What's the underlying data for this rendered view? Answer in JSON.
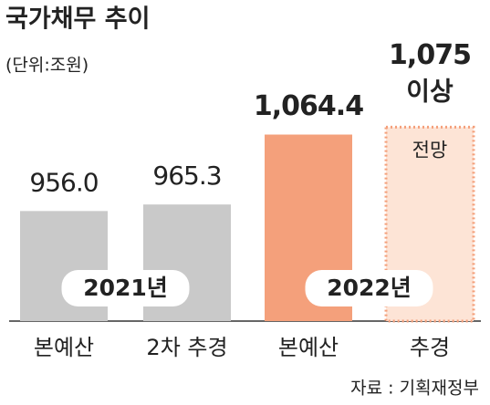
{
  "chart_data": {
    "type": "bar",
    "title": "국가채무 추이",
    "subtitle": "(단위:조원)",
    "categories": [
      "본예산",
      "2차 추경",
      "본예산",
      "추경"
    ],
    "values": [
      956.0,
      965.3,
      1064.4,
      1075
    ],
    "value_labels": [
      "956.0",
      "965.3",
      "1,064.4",
      "1,075"
    ],
    "colors": [
      "#c9c9c9",
      "#c9c9c9",
      "#f4a07b",
      "#fde4d6"
    ],
    "bar_styles": [
      "solid",
      "solid",
      "solid",
      "dotted"
    ],
    "groups": [
      "2021년",
      "2022년"
    ],
    "annotations": [
      "이상",
      "전망"
    ],
    "source": "자료 : 기획재정부",
    "ylim": [
      800,
      1100
    ]
  }
}
